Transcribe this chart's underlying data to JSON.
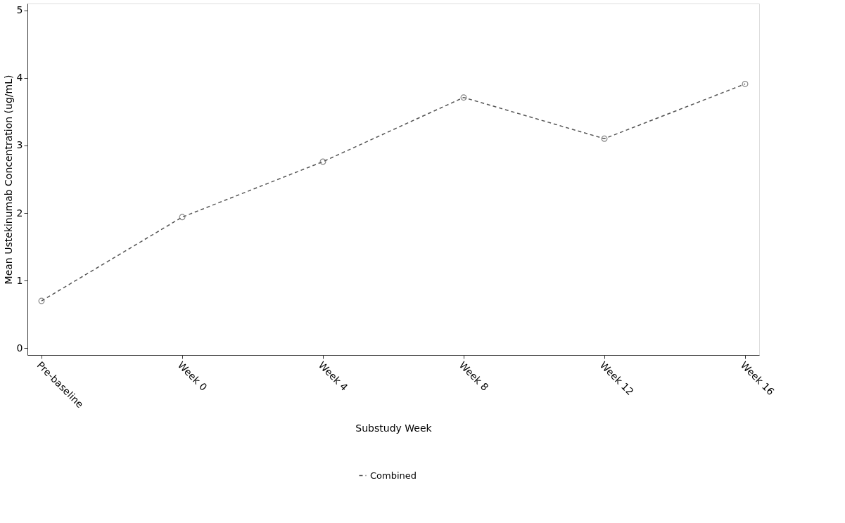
{
  "chart_data": {
    "type": "line",
    "xlabel": "Substudy Week",
    "ylabel": "Mean Ustekinumab Concentration (ug/mL)",
    "categories": [
      "Pre-baseline",
      "Week 0",
      "Week 4",
      "Week 8",
      "Week 12",
      "Week 16"
    ],
    "series": [
      {
        "name": "Combined",
        "color": "#555555",
        "values": [
          0.7,
          1.94,
          2.76,
          3.71,
          3.1,
          3.91
        ]
      }
    ],
    "ylim": [
      -0.1,
      5.1
    ],
    "yticks": [
      0,
      1,
      2,
      3,
      4,
      5
    ],
    "grid": false,
    "legend": "bottom",
    "marker": "circle",
    "line_style": "dashed"
  }
}
